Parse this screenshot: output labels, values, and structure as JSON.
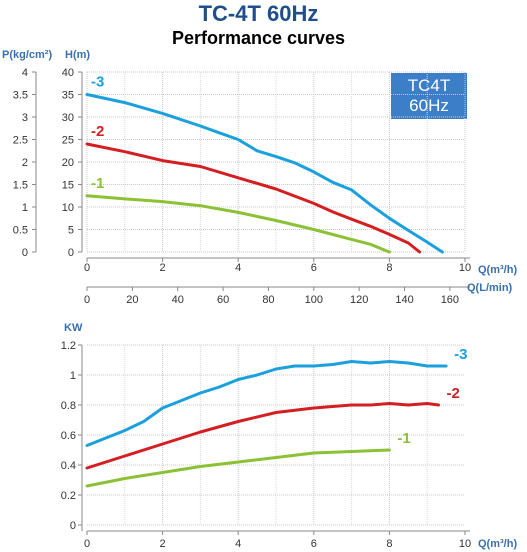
{
  "header": {
    "model": "TC-4T",
    "freq": "60Hz",
    "subtitle": "Performance curves"
  },
  "badge": {
    "line1": "TC4T",
    "line2": "60Hz"
  },
  "colors": {
    "-3": "#1aa0dd",
    "-2": "#d41f22",
    "-1": "#8cc135",
    "axis_label": "#3a6fb0",
    "badge": "#3c7fc8"
  },
  "chart_data": [
    {
      "type": "line",
      "title": "Performance curves",
      "xlabel": "Q(m³/h)",
      "x2label": "Q(L/min)",
      "ylabel": "H(m)",
      "y2label": "P(kg/cm²)",
      "xlim": [
        0,
        10
      ],
      "ylim": [
        0,
        40
      ],
      "x_ticks": [
        "0",
        "2",
        "4",
        "6",
        "8",
        "10"
      ],
      "x2_ticks": [
        "0",
        "20",
        "40",
        "60",
        "80",
        "100",
        "120",
        "140",
        "160"
      ],
      "y_ticks": [
        "0",
        "5",
        "10",
        "15",
        "20",
        "25",
        "30",
        "35",
        "40"
      ],
      "y2_ticks": [
        "0",
        "0.5",
        "1",
        "1.5",
        "2",
        "2.5",
        "3",
        "3.5",
        "4"
      ],
      "grid": true,
      "series": [
        {
          "name": "-3",
          "x": [
            0,
            1,
            2,
            3,
            3.5,
            4,
            4.5,
            5,
            5.5,
            6,
            6.5,
            7,
            7.5,
            8,
            8.5,
            9,
            9.4
          ],
          "y": [
            35,
            33.2,
            30.8,
            28,
            26.5,
            25,
            22.5,
            21.2,
            19.8,
            17.8,
            15.5,
            13.8,
            10.5,
            7.5,
            4.8,
            2.2,
            0
          ]
        },
        {
          "name": "-2",
          "x": [
            0,
            1,
            2,
            3,
            4,
            5,
            6,
            6.5,
            7,
            7.5,
            8,
            8.5,
            8.8
          ],
          "y": [
            24,
            22.3,
            20.3,
            19,
            16.5,
            14,
            10.8,
            8.9,
            7.3,
            5.7,
            3.9,
            2,
            0
          ]
        },
        {
          "name": "-1",
          "x": [
            0,
            1,
            2,
            3,
            4,
            5,
            6,
            7,
            7.5,
            8
          ],
          "y": [
            12.5,
            11.8,
            11.2,
            10.3,
            8.8,
            7,
            5,
            2.8,
            1.7,
            0
          ]
        }
      ]
    },
    {
      "type": "line",
      "xlabel": "Q(m³/h)",
      "ylabel": "KW",
      "xlim": [
        0,
        10
      ],
      "ylim": [
        0,
        1.2
      ],
      "x_ticks": [
        "0",
        "2",
        "4",
        "6",
        "8",
        "10"
      ],
      "y_ticks": [
        "0",
        "0.2",
        "0.4",
        "0.6",
        "0.8",
        "1",
        "1.2"
      ],
      "grid": true,
      "series": [
        {
          "name": "-3",
          "x": [
            0,
            0.5,
            1,
            1.5,
            2,
            2.5,
            3,
            3.5,
            4,
            4.5,
            5,
            5.5,
            6,
            6.5,
            7,
            7.5,
            8,
            8.5,
            9,
            9.5
          ],
          "y": [
            0.53,
            0.58,
            0.63,
            0.69,
            0.78,
            0.83,
            0.88,
            0.92,
            0.97,
            1.0,
            1.04,
            1.06,
            1.06,
            1.07,
            1.09,
            1.08,
            1.09,
            1.08,
            1.06,
            1.06
          ]
        },
        {
          "name": "-2",
          "x": [
            0,
            1,
            2,
            3,
            4,
            5,
            6,
            7,
            7.5,
            8,
            8.5,
            9,
            9.3
          ],
          "y": [
            0.38,
            0.46,
            0.54,
            0.62,
            0.69,
            0.75,
            0.78,
            0.8,
            0.8,
            0.81,
            0.8,
            0.81,
            0.8
          ]
        },
        {
          "name": "-1",
          "x": [
            0,
            1,
            2,
            2.5,
            3,
            4,
            5,
            6,
            7,
            8
          ],
          "y": [
            0.26,
            0.31,
            0.35,
            0.37,
            0.39,
            0.42,
            0.45,
            0.48,
            0.49,
            0.5
          ]
        }
      ]
    }
  ]
}
